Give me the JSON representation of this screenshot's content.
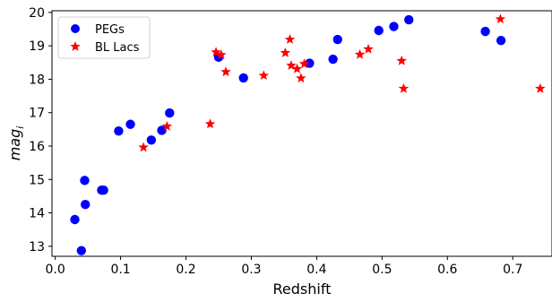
{
  "chart_data": {
    "type": "scatter",
    "xlabel": "Redshift",
    "ylabel": "mag",
    "ylabel_sub": "i",
    "xlim": [
      -0.005,
      0.76
    ],
    "ylim": [
      12.7,
      20.05
    ],
    "xticks": [
      0.0,
      0.1,
      0.2,
      0.3,
      0.4,
      0.5,
      0.6,
      0.7
    ],
    "xtick_labels": [
      "0.0",
      "0.1",
      "0.2",
      "0.3",
      "0.4",
      "0.5",
      "0.6",
      "0.7"
    ],
    "yticks": [
      13,
      14,
      15,
      16,
      17,
      18,
      19,
      20
    ],
    "ytick_labels": [
      "13",
      "14",
      "15",
      "16",
      "17",
      "18",
      "19",
      "20"
    ],
    "grid": false,
    "legend_position": "upper-left",
    "series": [
      {
        "name": "PEGs",
        "marker": "circle",
        "color": "#0000ff",
        "points": [
          {
            "x": 0.03,
            "y": 13.8
          },
          {
            "x": 0.04,
            "y": 12.87
          },
          {
            "x": 0.045,
            "y": 14.97
          },
          {
            "x": 0.046,
            "y": 14.25
          },
          {
            "x": 0.071,
            "y": 14.68
          },
          {
            "x": 0.074,
            "y": 14.68
          },
          {
            "x": 0.097,
            "y": 16.45
          },
          {
            "x": 0.115,
            "y": 16.65
          },
          {
            "x": 0.147,
            "y": 16.18
          },
          {
            "x": 0.163,
            "y": 16.47
          },
          {
            "x": 0.175,
            "y": 16.99
          },
          {
            "x": 0.25,
            "y": 18.66
          },
          {
            "x": 0.288,
            "y": 18.04
          },
          {
            "x": 0.389,
            "y": 18.48
          },
          {
            "x": 0.425,
            "y": 18.6
          },
          {
            "x": 0.432,
            "y": 19.19
          },
          {
            "x": 0.495,
            "y": 19.46
          },
          {
            "x": 0.518,
            "y": 19.58
          },
          {
            "x": 0.541,
            "y": 19.78
          },
          {
            "x": 0.658,
            "y": 19.43
          },
          {
            "x": 0.682,
            "y": 19.16
          }
        ]
      },
      {
        "name": "BL Lacs",
        "marker": "star",
        "color": "#ff0000",
        "points": [
          {
            "x": 0.135,
            "y": 15.96
          },
          {
            "x": 0.171,
            "y": 16.59
          },
          {
            "x": 0.237,
            "y": 16.66
          },
          {
            "x": 0.246,
            "y": 18.81
          },
          {
            "x": 0.254,
            "y": 18.73
          },
          {
            "x": 0.261,
            "y": 18.22
          },
          {
            "x": 0.319,
            "y": 18.11
          },
          {
            "x": 0.352,
            "y": 18.79
          },
          {
            "x": 0.359,
            "y": 19.19
          },
          {
            "x": 0.361,
            "y": 18.41
          },
          {
            "x": 0.37,
            "y": 18.31
          },
          {
            "x": 0.376,
            "y": 18.03
          },
          {
            "x": 0.381,
            "y": 18.46
          },
          {
            "x": 0.466,
            "y": 18.74
          },
          {
            "x": 0.479,
            "y": 18.9
          },
          {
            "x": 0.53,
            "y": 18.55
          },
          {
            "x": 0.533,
            "y": 17.72
          },
          {
            "x": 0.681,
            "y": 19.8
          },
          {
            "x": 0.742,
            "y": 17.72
          }
        ]
      }
    ]
  }
}
